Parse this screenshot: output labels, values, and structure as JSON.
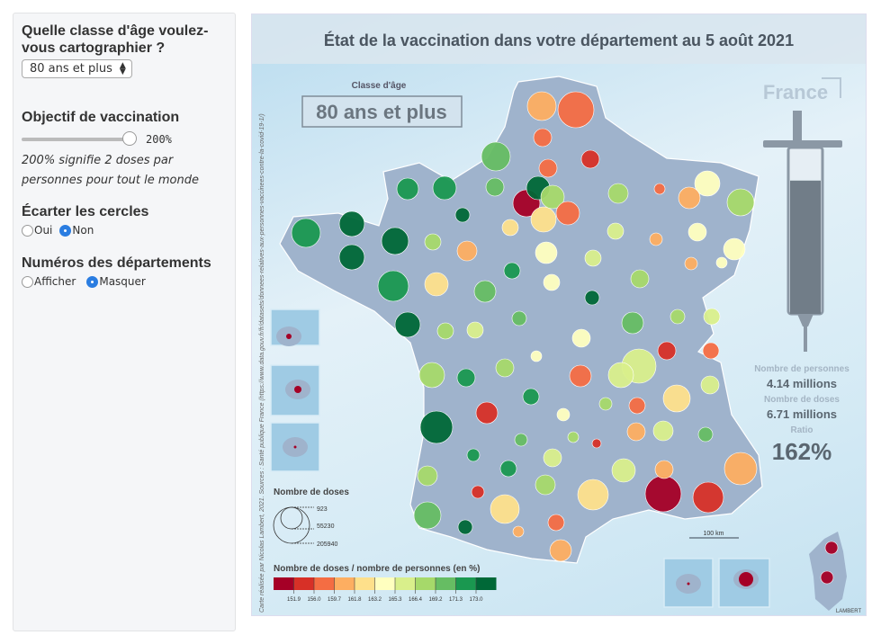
{
  "panel": {
    "age_question": "Quelle classe d'âge voulez-vous cartographier ?",
    "age_selected": "80 ans et plus",
    "objective_label": "Objectif de vaccination",
    "objective_value": 200,
    "objective_display": "200%",
    "objective_note": "200% signifie 2 doses par personnes pour tout le monde",
    "spread_label": "Écarter les cercles",
    "spread_options": [
      "Oui",
      "Non"
    ],
    "spread_selected": "Non",
    "numbers_label": "Numéros des départements",
    "numbers_options": [
      "Afficher",
      "Masquer"
    ],
    "numbers_selected": "Masquer"
  },
  "map": {
    "title": "État de la vaccination dans votre département au 5 août 2021",
    "age_class_label": "Classe d'âge",
    "age_class_value": "80 ans et plus",
    "country": "France",
    "stats": {
      "persons_label": "Nombre de personnes",
      "persons_value": "4.14 millions",
      "doses_label": "Nombre de doses",
      "doses_value": "6.71 millions",
      "ratio_label": "Ratio",
      "ratio_value": "162%"
    },
    "syringe_fill_fraction": 0.81,
    "size_legend": {
      "title": "Nombre de doses",
      "values": [
        "923",
        "55230",
        "205940"
      ]
    },
    "color_legend": {
      "title": "Nombre de doses / nombre de personnes (en %)",
      "breaks": [
        "151.9",
        "156.0",
        "159.7",
        "161.8",
        "163.2",
        "165.3",
        "166.4",
        "169.2",
        "171.3",
        "173.0"
      ],
      "colors": [
        "#a50026",
        "#d73027",
        "#f46d43",
        "#fdae61",
        "#fee08b",
        "#ffffbf",
        "#d9ef8b",
        "#a6d96a",
        "#66bd63",
        "#1a9850",
        "#006837"
      ]
    },
    "scale_bar": "100 km",
    "source": "Carte réalisée par Nicolas Lambert, 2021. Sources : Santé publique France (https://www.data.gouv.fr/fr/datasets/donnees-relatives-aux-personnes-vaccinees-contre-la-covid-19-1/)",
    "signature": "LAMBERT"
  }
}
